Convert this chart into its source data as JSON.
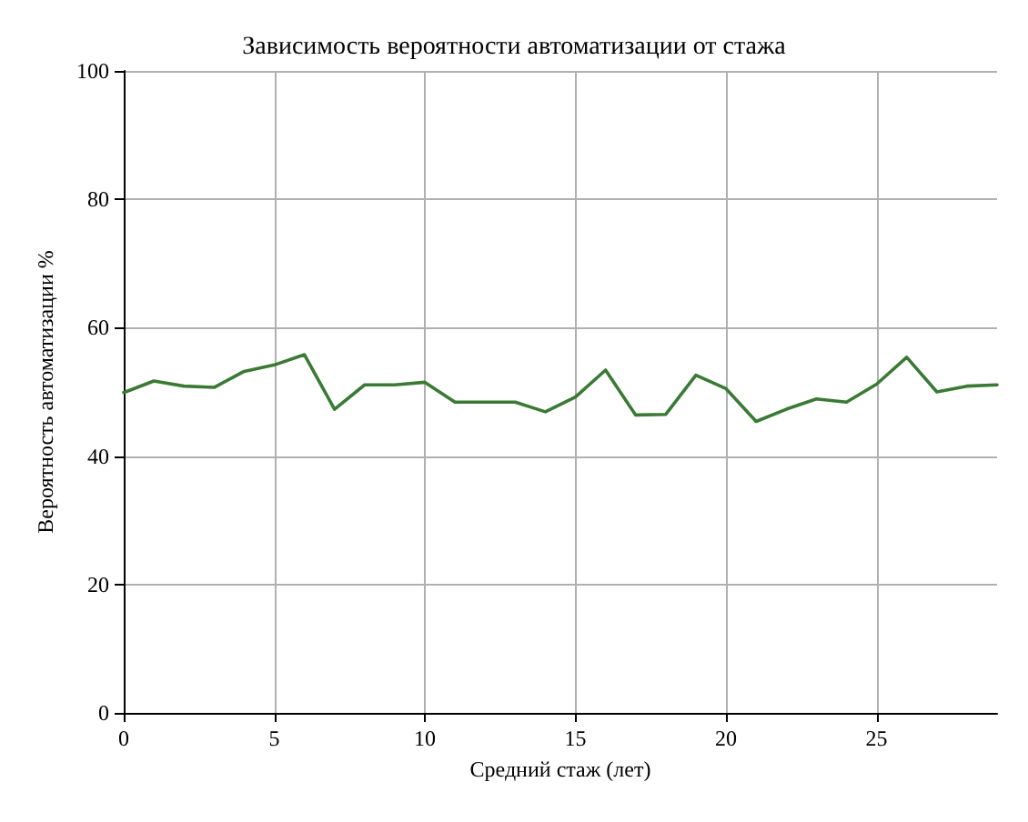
{
  "chart_data": {
    "type": "line",
    "title": "Зависимость вероятности автоматизации от стажа",
    "xlabel": "Средний стаж (лет)",
    "ylabel": "Вероятность автоматизации %",
    "x": [
      0,
      1,
      2,
      3,
      4,
      5,
      6,
      7,
      8,
      9,
      10,
      11,
      12,
      13,
      14,
      15,
      16,
      17,
      18,
      19,
      20,
      21,
      22,
      23,
      24,
      25,
      26,
      27,
      28,
      29
    ],
    "series": [
      {
        "color": "#3a7a35",
        "values": [
          49.9,
          51.7,
          50.9,
          50.7,
          53.2,
          54.2,
          55.8,
          47.3,
          51.1,
          51.1,
          51.5,
          48.4,
          48.4,
          48.4,
          46.9,
          49.2,
          53.4,
          46.4,
          46.5,
          52.6,
          50.5,
          45.4,
          47.3,
          48.9,
          48.4,
          51.2,
          55.4,
          50.0,
          50.9,
          51.1
        ]
      }
    ],
    "xlim": [
      0,
      29
    ],
    "xticks": [
      0,
      5,
      10,
      15,
      20,
      25
    ],
    "ylim": [
      0,
      100
    ],
    "yticks": [
      0,
      20,
      40,
      60,
      80,
      100
    ],
    "grid": true,
    "marker": "none",
    "line_style": "solid"
  }
}
